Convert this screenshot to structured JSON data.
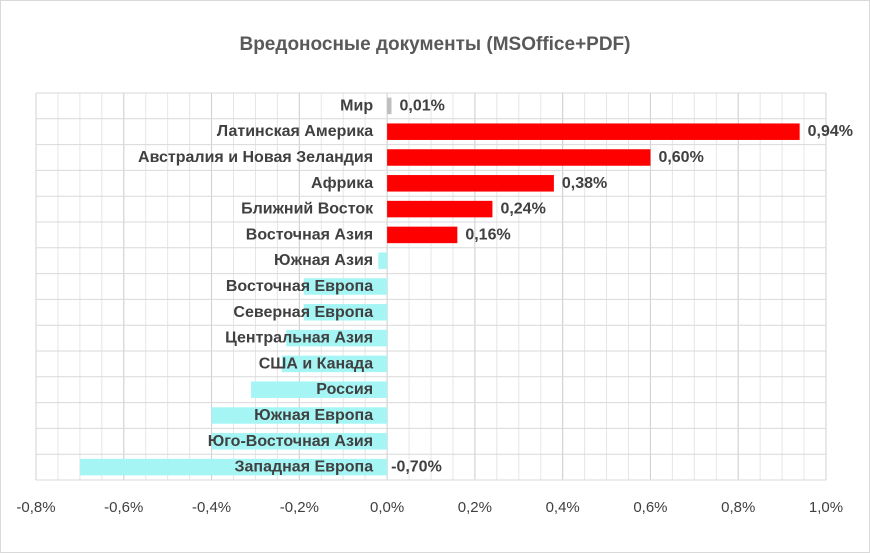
{
  "chart_data": {
    "type": "bar",
    "orientation": "horizontal",
    "title": "Вредоносные документы (MSOffice+PDF)",
    "xlabel": "",
    "ylabel": "",
    "xlim": [
      -0.8,
      1.0
    ],
    "x_ticks": [
      -0.8,
      -0.6,
      -0.4,
      -0.2,
      0.0,
      0.2,
      0.4,
      0.6,
      0.8,
      1.0
    ],
    "x_tick_labels": [
      "-0,8%",
      "-0,6%",
      "-0,4%",
      "-0,2%",
      "0,0%",
      "0,2%",
      "0,4%",
      "0,6%",
      "0,8%",
      "1,0%"
    ],
    "grid": true,
    "legend": "none",
    "categories": [
      "Мир",
      "Латинская Америка",
      "Австралия и Новая Зеландия",
      "Африка",
      "Ближний Восток",
      "Восточная Азия",
      "Южная Азия",
      "Восточная Европа",
      "Северная Европа",
      "Центральная Азия",
      "США и Канада",
      "Россия",
      "Южная Европа",
      "Юго-Восточная Азия",
      "Западная Европа"
    ],
    "values": [
      0.01,
      0.94,
      0.6,
      0.38,
      0.24,
      0.16,
      -0.02,
      -0.19,
      -0.19,
      -0.23,
      -0.24,
      -0.31,
      -0.4,
      -0.4,
      -0.7
    ],
    "data_labels": [
      "0,01%",
      "0,94%",
      "0,60%",
      "0,38%",
      "0,24%",
      "0,16%",
      "",
      "",
      "",
      "",
      "",
      "",
      "",
      "",
      "-0,70%"
    ],
    "bar_colors": [
      "#bfbfbf",
      "#ff0000",
      "#ff0000",
      "#ff0000",
      "#ff0000",
      "#ff0000",
      "#a6f5f5",
      "#a6f5f5",
      "#a6f5f5",
      "#a6f5f5",
      "#a6f5f5",
      "#a6f5f5",
      "#a6f5f5",
      "#a6f5f5",
      "#a6f5f5"
    ]
  }
}
